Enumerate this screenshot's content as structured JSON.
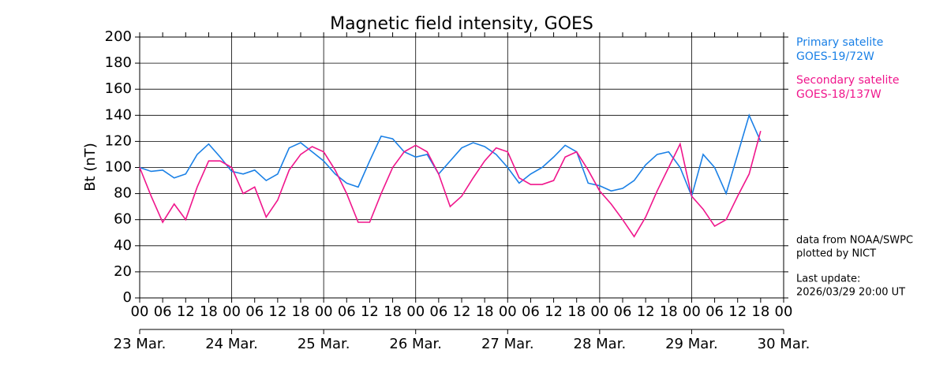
{
  "chart_data": {
    "type": "line",
    "title": "Magnetic field intensity, GOES",
    "y_label": "Bt (nT)",
    "x": [
      0,
      3,
      6,
      9,
      12,
      15,
      18,
      21,
      24,
      27,
      30,
      33,
      36,
      39,
      42,
      45,
      48,
      51,
      54,
      57,
      60,
      63,
      66,
      69,
      72,
      75,
      78,
      81,
      84,
      87,
      90,
      93,
      96,
      99,
      102,
      105,
      108,
      111,
      114,
      117,
      120,
      123,
      126,
      129,
      132,
      135,
      138,
      141,
      144,
      147,
      150,
      153,
      156,
      159,
      162
    ],
    "series": [
      {
        "name": "Primary satelite",
        "satellite": "GOES-19/72W",
        "color": "#1a80e6",
        "values": [
          100,
          97,
          98,
          92,
          95,
          110,
          118,
          108,
          97,
          95,
          98,
          90,
          95,
          115,
          119,
          112,
          105,
          95,
          88,
          85,
          105,
          124,
          122,
          112,
          108,
          110,
          95,
          105,
          115,
          119,
          116,
          110,
          100,
          88,
          95,
          100,
          108,
          117,
          112,
          88,
          86,
          82,
          84,
          90,
          102,
          110,
          112,
          100,
          78,
          110,
          100,
          80,
          110,
          140,
          120
        ]
      },
      {
        "name": "Secondary satelite",
        "satellite": "GOES-18/137W",
        "color": "#f0168c",
        "values": [
          100,
          78,
          58,
          72,
          60,
          85,
          105,
          105,
          100,
          80,
          85,
          62,
          75,
          98,
          110,
          116,
          112,
          98,
          80,
          58,
          58,
          80,
          100,
          112,
          117,
          112,
          95,
          70,
          78,
          92,
          105,
          115,
          112,
          92,
          87,
          87,
          90,
          108,
          112,
          98,
          82,
          72,
          60,
          47,
          62,
          82,
          100,
          118,
          78,
          68,
          55,
          60,
          78,
          95,
          128
        ]
      }
    ],
    "xlim": [
      0,
      168
    ],
    "xticks": [
      {
        "value": 0,
        "label": "00"
      },
      {
        "value": 6,
        "label": "06"
      },
      {
        "value": 12,
        "label": "12"
      },
      {
        "value": 18,
        "label": "18"
      },
      {
        "value": 24,
        "label": "00"
      },
      {
        "value": 30,
        "label": "06"
      },
      {
        "value": 36,
        "label": "12"
      },
      {
        "value": 42,
        "label": "18"
      },
      {
        "value": 48,
        "label": "00"
      },
      {
        "value": 54,
        "label": "06"
      },
      {
        "value": 60,
        "label": "12"
      },
      {
        "value": 66,
        "label": "18"
      },
      {
        "value": 72,
        "label": "00"
      },
      {
        "value": 78,
        "label": "06"
      },
      {
        "value": 84,
        "label": "12"
      },
      {
        "value": 90,
        "label": "18"
      },
      {
        "value": 96,
        "label": "00"
      },
      {
        "value": 102,
        "label": "06"
      },
      {
        "value": 108,
        "label": "12"
      },
      {
        "value": 114,
        "label": "18"
      },
      {
        "value": 120,
        "label": "00"
      },
      {
        "value": 126,
        "label": "06"
      },
      {
        "value": 132,
        "label": "12"
      },
      {
        "value": 138,
        "label": "18"
      },
      {
        "value": 144,
        "label": "00"
      },
      {
        "value": 150,
        "label": "06"
      },
      {
        "value": 156,
        "label": "12"
      },
      {
        "value": 162,
        "label": "18"
      },
      {
        "value": 168,
        "label": "00"
      }
    ],
    "date_ticks": [
      {
        "value": 0,
        "label": "23 Mar."
      },
      {
        "value": 24,
        "label": "24 Mar."
      },
      {
        "value": 48,
        "label": "25 Mar."
      },
      {
        "value": 72,
        "label": "26 Mar."
      },
      {
        "value": 96,
        "label": "27 Mar."
      },
      {
        "value": 120,
        "label": "28 Mar."
      },
      {
        "value": 144,
        "label": "29 Mar."
      },
      {
        "value": 168,
        "label": "30 Mar."
      }
    ],
    "ylim": [
      0,
      200
    ],
    "yticks": [
      0,
      20,
      40,
      60,
      80,
      100,
      120,
      140,
      160,
      180,
      200
    ],
    "grid": true,
    "notes": [
      "data from NOAA/SWPC",
      "plotted by NICT",
      "Last update:",
      "2026/03/29 20:00 UT"
    ]
  }
}
